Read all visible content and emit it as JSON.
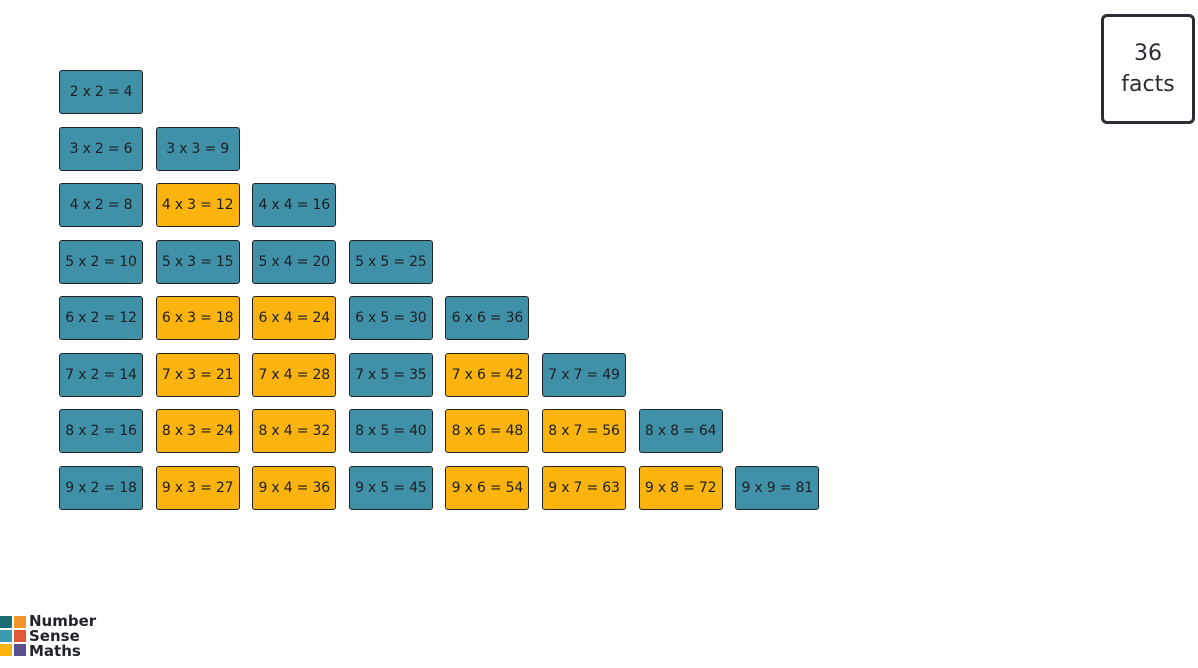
{
  "facts_box": {
    "count": "36",
    "label": "facts"
  },
  "colors": {
    "blue": "#4091a8",
    "yellow": "#fbb30d"
  },
  "rows": [
    {
      "tiles": [
        {
          "text": "2 x 2 = 4",
          "color": "blue"
        }
      ]
    },
    {
      "tiles": [
        {
          "text": "3 x 2 = 6",
          "color": "blue"
        },
        {
          "text": "3 x 3 = 9",
          "color": "blue"
        }
      ]
    },
    {
      "tiles": [
        {
          "text": "4 x 2 = 8",
          "color": "blue"
        },
        {
          "text": "4 x 3 = 12",
          "color": "yellow"
        },
        {
          "text": "4 x 4 = 16",
          "color": "blue"
        }
      ]
    },
    {
      "tiles": [
        {
          "text": "5 x 2 = 10",
          "color": "blue"
        },
        {
          "text": "5 x 3 = 15",
          "color": "blue"
        },
        {
          "text": "5 x 4 = 20",
          "color": "blue"
        },
        {
          "text": "5 x 5 = 25",
          "color": "blue"
        }
      ]
    },
    {
      "tiles": [
        {
          "text": "6 x 2 = 12",
          "color": "blue"
        },
        {
          "text": "6 x 3 = 18",
          "color": "yellow"
        },
        {
          "text": "6 x 4 = 24",
          "color": "yellow"
        },
        {
          "text": "6 x 5 = 30",
          "color": "blue"
        },
        {
          "text": "6 x 6 = 36",
          "color": "blue"
        }
      ]
    },
    {
      "tiles": [
        {
          "text": "7 x 2 = 14",
          "color": "blue"
        },
        {
          "text": "7 x 3 = 21",
          "color": "yellow"
        },
        {
          "text": "7 x 4 = 28",
          "color": "yellow"
        },
        {
          "text": "7 x 5 = 35",
          "color": "blue"
        },
        {
          "text": "7 x 6 = 42",
          "color": "yellow"
        },
        {
          "text": "7 x 7 = 49",
          "color": "blue"
        }
      ]
    },
    {
      "tiles": [
        {
          "text": "8 x 2 = 16",
          "color": "blue"
        },
        {
          "text": "8 x 3 = 24",
          "color": "yellow"
        },
        {
          "text": "8 x 4 = 32",
          "color": "yellow"
        },
        {
          "text": "8 x 5 = 40",
          "color": "blue"
        },
        {
          "text": "8 x 6 = 48",
          "color": "yellow"
        },
        {
          "text": "8 x 7 = 56",
          "color": "yellow"
        },
        {
          "text": "8 x 8 = 64",
          "color": "blue"
        }
      ]
    },
    {
      "tiles": [
        {
          "text": "9 x 2 = 18",
          "color": "blue"
        },
        {
          "text": "9 x 3 = 27",
          "color": "yellow"
        },
        {
          "text": "9 x 4 = 36",
          "color": "yellow"
        },
        {
          "text": "9 x 5 = 45",
          "color": "blue"
        },
        {
          "text": "9 x 6 = 54",
          "color": "yellow"
        },
        {
          "text": "9 x 7 = 63",
          "color": "yellow"
        },
        {
          "text": "9 x 8 = 72",
          "color": "yellow"
        },
        {
          "text": "9 x 9 = 81",
          "color": "blue"
        }
      ]
    }
  ],
  "logo": {
    "lines": [
      "Number",
      "Sense",
      "Maths"
    ],
    "square_colors": [
      "#1d6b73",
      "#f0952a",
      "#3a9bb0",
      "#e0573a",
      "#fbb30d",
      "#5a4f8e"
    ]
  }
}
